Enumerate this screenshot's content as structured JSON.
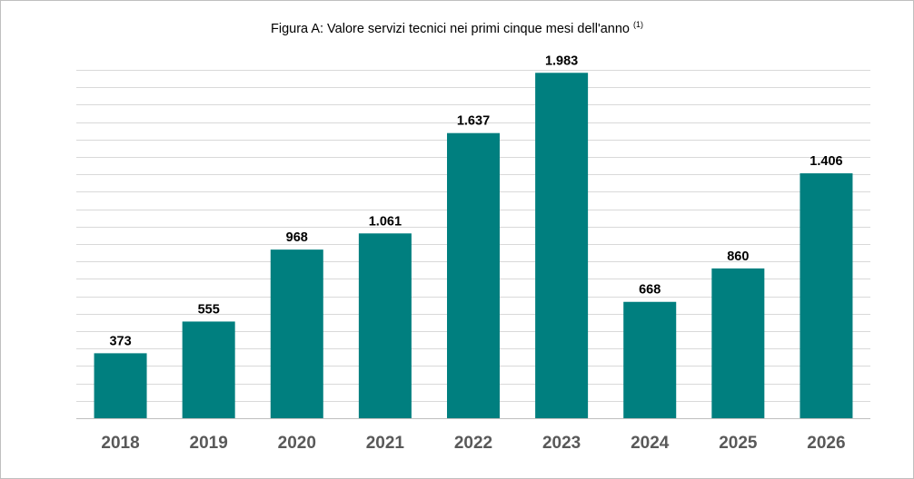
{
  "chart_data": {
    "type": "bar",
    "title": "Figura A: Valore servizi tecnici nei primi cinque mesi dell'anno",
    "title_note": "(1)",
    "categories": [
      "2018",
      "2019",
      "2020",
      "2021",
      "2022",
      "2023",
      "2024",
      "2025",
      "2026"
    ],
    "values": [
      373,
      555,
      968,
      1061,
      1637,
      1983,
      668,
      860,
      1406
    ],
    "value_labels": [
      "373",
      "555",
      "968",
      "1.061",
      "1.637",
      "1.983",
      "668",
      "860",
      "1.406"
    ],
    "xlabel": "",
    "ylabel": "",
    "ylim": [
      0,
      2000
    ],
    "grid": true,
    "legend": "none",
    "bar_color": "#007F7F",
    "grid_color": "#d9d9d9"
  }
}
